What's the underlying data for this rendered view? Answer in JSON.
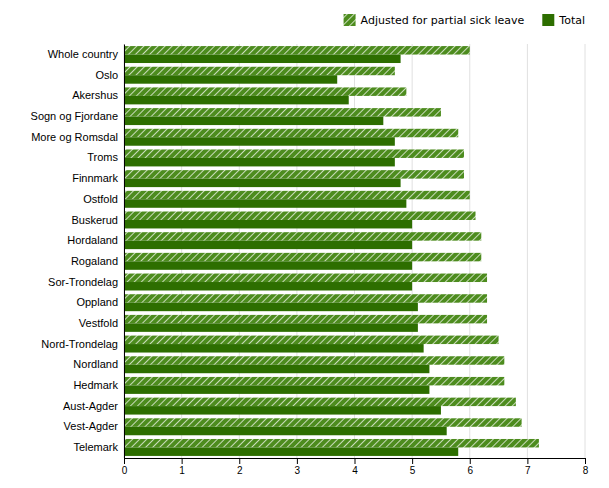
{
  "chart_data": {
    "type": "bar",
    "orientation": "horizontal",
    "categories": [
      "Telemark",
      "Vest-Agder",
      "Aust-Agder",
      "Hedmark",
      "Nordland",
      "Nord-Trondelag",
      "Vestfold",
      "Oppland",
      "Sor-Trondelag",
      "Rogaland",
      "Hordaland",
      "Buskerud",
      "Ostfold",
      "Finnmark",
      "Troms",
      "More og Romsdal",
      "Sogn og Fjordane",
      "Akershus",
      "Oslo",
      "Whole country"
    ],
    "series": [
      {
        "name": "Adjusted for partial sick leave",
        "color": "#4d8c1e",
        "values": [
          7.2,
          6.9,
          6.8,
          6.6,
          6.6,
          6.5,
          6.3,
          6.3,
          6.3,
          6.2,
          6.2,
          6.1,
          6.0,
          5.9,
          5.9,
          5.8,
          5.5,
          4.9,
          4.7,
          6.0
        ]
      },
      {
        "name": "Total",
        "color": "#2d6e00",
        "values": [
          5.8,
          5.6,
          5.5,
          5.3,
          5.3,
          5.2,
          5.1,
          5.1,
          5.0,
          5.0,
          5.0,
          5.0,
          4.9,
          4.8,
          4.7,
          4.7,
          4.5,
          3.9,
          3.7,
          4.8
        ]
      }
    ],
    "xlim": [
      0,
      8
    ],
    "xticks": [
      0,
      1,
      2,
      3,
      4,
      5,
      6,
      7,
      8
    ],
    "grid": true,
    "legend": "upper right"
  }
}
